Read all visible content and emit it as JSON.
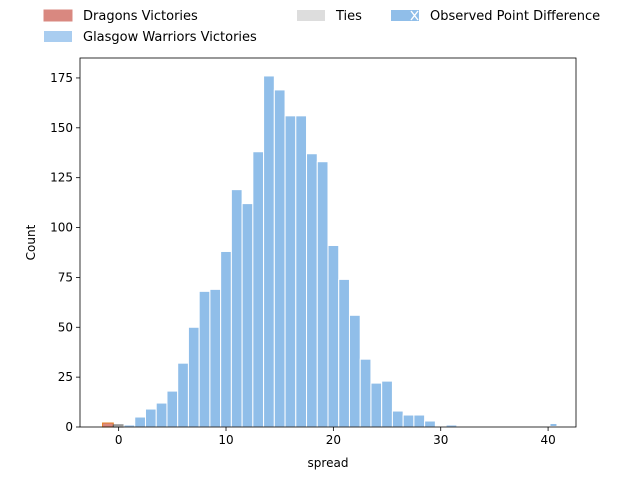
{
  "chart_data": {
    "type": "bar",
    "title": "",
    "xlabel": "spread",
    "ylabel": "Count",
    "xlim": [
      -3.6,
      42.6
    ],
    "ylim": [
      0,
      185
    ],
    "xticks": [
      0,
      10,
      20,
      30,
      40
    ],
    "yticks": [
      0,
      25,
      50,
      75,
      100,
      125,
      150,
      175
    ],
    "grid": false,
    "legend_placement": "top",
    "colors": {
      "dragons": "#d98880",
      "dragons_edge": "#e67e22",
      "glasgow": "#a9cdf0",
      "glasgow_bar": "#90bee9",
      "ties": "#dddddd",
      "observed": "#90bee9",
      "bar_edge": "#ffffff"
    },
    "legend": [
      {
        "key": "dragons",
        "label": "Dragons Victories"
      },
      {
        "key": "ties",
        "label": "Ties"
      },
      {
        "key": "observed",
        "label": "Observed Point Difference"
      },
      {
        "key": "glasgow",
        "label": "Glasgow Warriors Victories"
      }
    ],
    "bins": [
      {
        "x0": -1.5,
        "x1": -0.5,
        "count": 2,
        "group": "dragons"
      },
      {
        "x0": -0.5,
        "x1": 0.5,
        "count": 1,
        "group": "ties"
      },
      {
        "x0": 0.5,
        "x1": 1.5,
        "count": 1,
        "group": "glasgow"
      },
      {
        "x0": 1.5,
        "x1": 2.5,
        "count": 5,
        "group": "glasgow"
      },
      {
        "x0": 2.5,
        "x1": 3.5,
        "count": 9,
        "group": "glasgow"
      },
      {
        "x0": 3.5,
        "x1": 4.5,
        "count": 12,
        "group": "glasgow"
      },
      {
        "x0": 4.5,
        "x1": 5.5,
        "count": 18,
        "group": "glasgow"
      },
      {
        "x0": 5.5,
        "x1": 6.5,
        "count": 32,
        "group": "glasgow"
      },
      {
        "x0": 6.5,
        "x1": 7.5,
        "count": 50,
        "group": "glasgow"
      },
      {
        "x0": 7.5,
        "x1": 8.5,
        "count": 68,
        "group": "glasgow"
      },
      {
        "x0": 8.5,
        "x1": 9.5,
        "count": 69,
        "group": "glasgow"
      },
      {
        "x0": 9.5,
        "x1": 10.5,
        "count": 88,
        "group": "glasgow"
      },
      {
        "x0": 10.5,
        "x1": 11.5,
        "count": 119,
        "group": "glasgow"
      },
      {
        "x0": 11.5,
        "x1": 12.5,
        "count": 112,
        "group": "glasgow"
      },
      {
        "x0": 12.5,
        "x1": 13.5,
        "count": 138,
        "group": "glasgow"
      },
      {
        "x0": 13.5,
        "x1": 14.5,
        "count": 176,
        "group": "glasgow"
      },
      {
        "x0": 14.5,
        "x1": 15.5,
        "count": 169,
        "group": "glasgow"
      },
      {
        "x0": 15.5,
        "x1": 16.5,
        "count": 156,
        "group": "glasgow"
      },
      {
        "x0": 16.5,
        "x1": 17.5,
        "count": 156,
        "group": "glasgow"
      },
      {
        "x0": 17.5,
        "x1": 18.5,
        "count": 137,
        "group": "glasgow"
      },
      {
        "x0": 18.5,
        "x1": 19.5,
        "count": 133,
        "group": "glasgow"
      },
      {
        "x0": 19.5,
        "x1": 20.5,
        "count": 91,
        "group": "glasgow"
      },
      {
        "x0": 20.5,
        "x1": 21.5,
        "count": 74,
        "group": "glasgow"
      },
      {
        "x0": 21.5,
        "x1": 22.5,
        "count": 56,
        "group": "glasgow"
      },
      {
        "x0": 22.5,
        "x1": 23.5,
        "count": 34,
        "group": "glasgow"
      },
      {
        "x0": 23.5,
        "x1": 24.5,
        "count": 22,
        "group": "glasgow"
      },
      {
        "x0": 24.5,
        "x1": 25.5,
        "count": 23,
        "group": "glasgow"
      },
      {
        "x0": 25.5,
        "x1": 26.5,
        "count": 8,
        "group": "glasgow"
      },
      {
        "x0": 26.5,
        "x1": 27.5,
        "count": 6,
        "group": "glasgow"
      },
      {
        "x0": 27.5,
        "x1": 28.5,
        "count": 6,
        "group": "glasgow"
      },
      {
        "x0": 28.5,
        "x1": 29.5,
        "count": 3,
        "group": "glasgow"
      },
      {
        "x0": 30.5,
        "x1": 31.5,
        "count": 1,
        "group": "glasgow"
      }
    ],
    "observed_point_difference": 40.5
  }
}
